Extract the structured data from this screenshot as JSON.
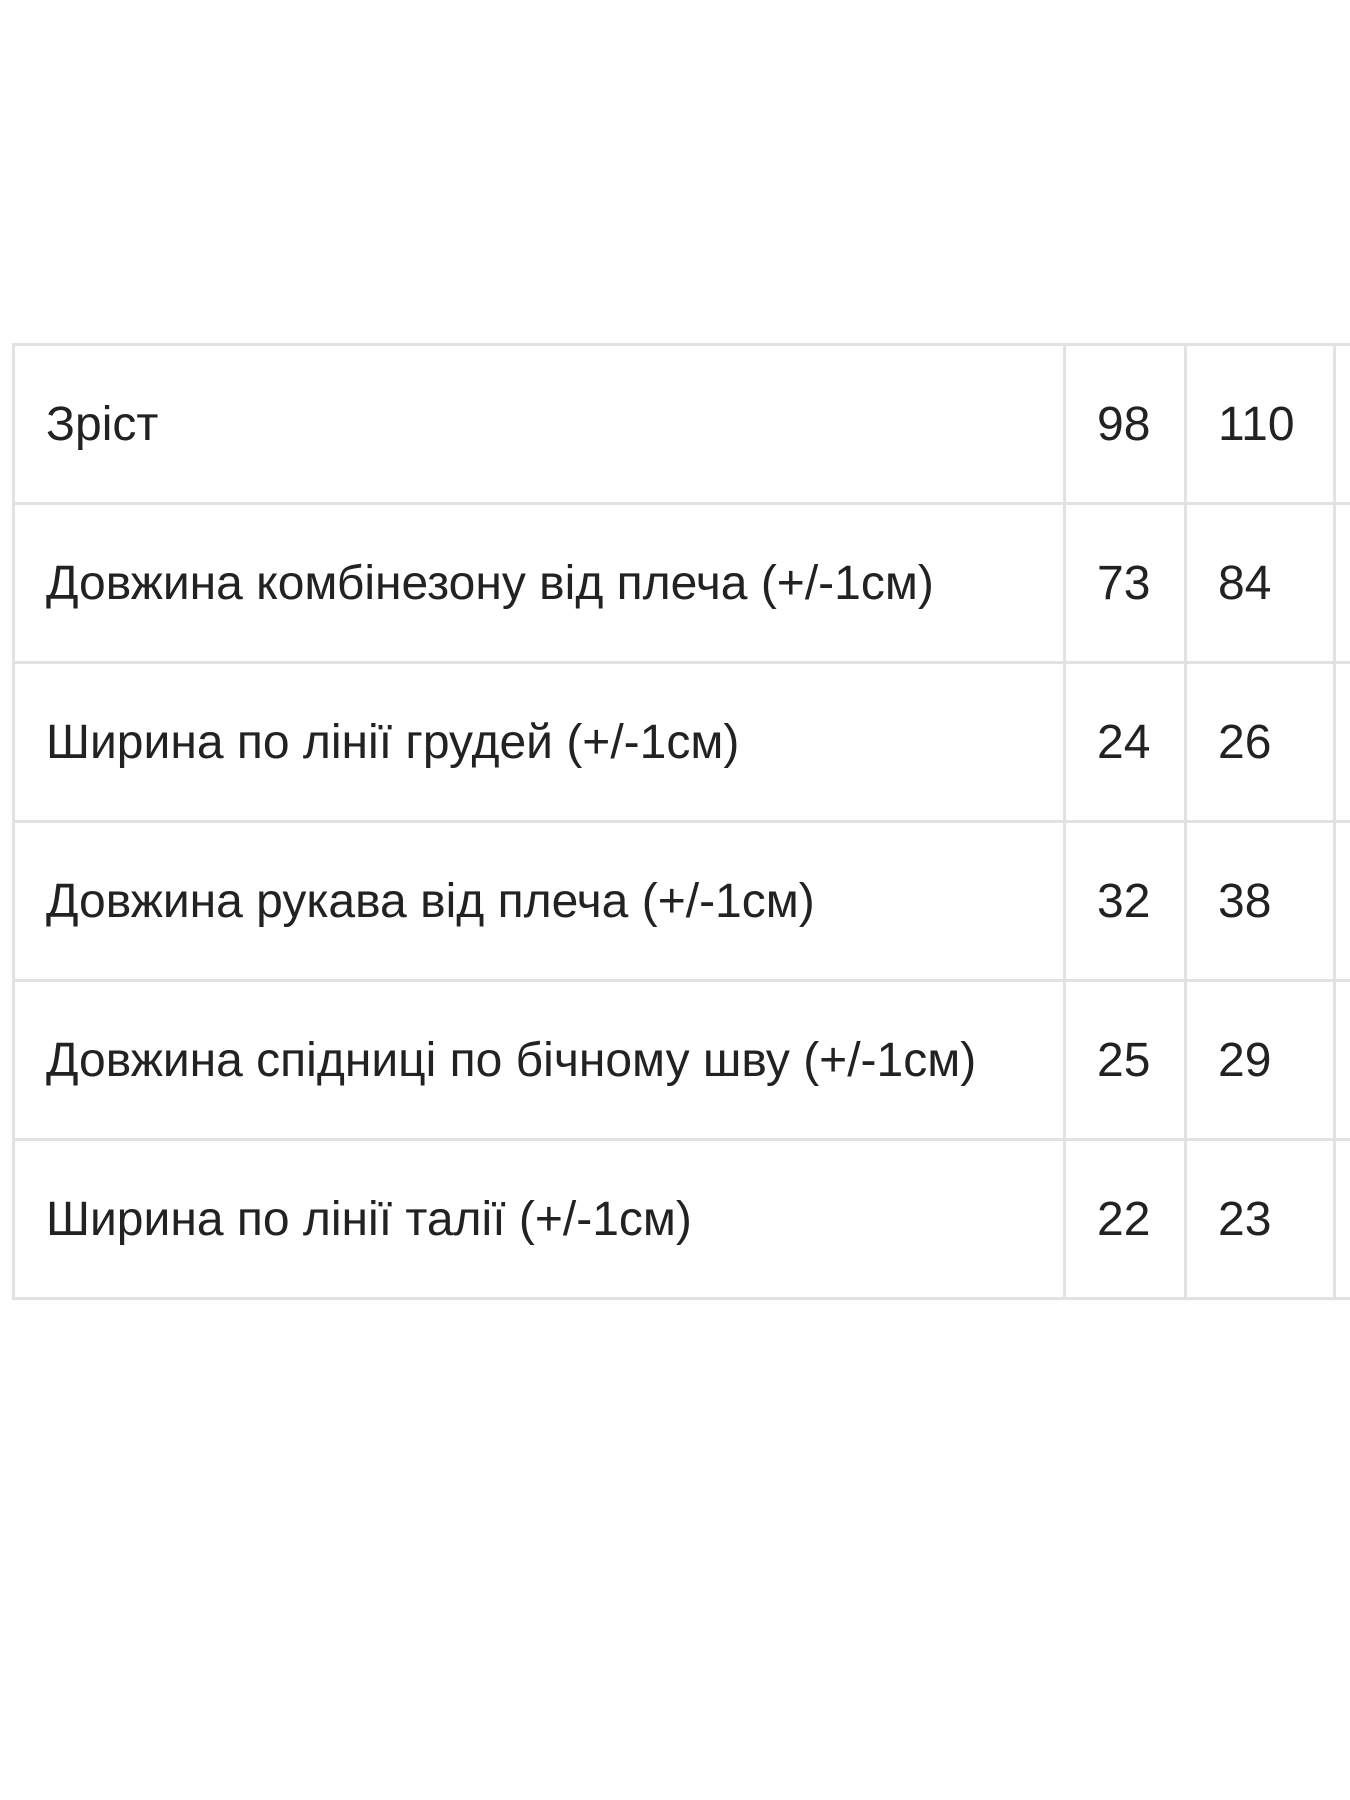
{
  "table": {
    "rows": [
      {
        "label": "Зріст",
        "values": [
          "98",
          "110"
        ]
      },
      {
        "label": "Довжина комбінезону від плеча (+/-1см)",
        "values": [
          "73",
          "84"
        ]
      },
      {
        "label": "Ширина по лінії грудей (+/-1см)",
        "values": [
          "24",
          "26"
        ]
      },
      {
        "label": "Довжина рукава від плеча (+/-1см)",
        "values": [
          "32",
          "38"
        ]
      },
      {
        "label": "Довжина спідниці по бічному шву (+/-1см)",
        "values": [
          "25",
          "29"
        ]
      },
      {
        "label": "Ширина по лінії талії (+/-1см)",
        "values": [
          "22",
          "23"
        ]
      }
    ]
  }
}
